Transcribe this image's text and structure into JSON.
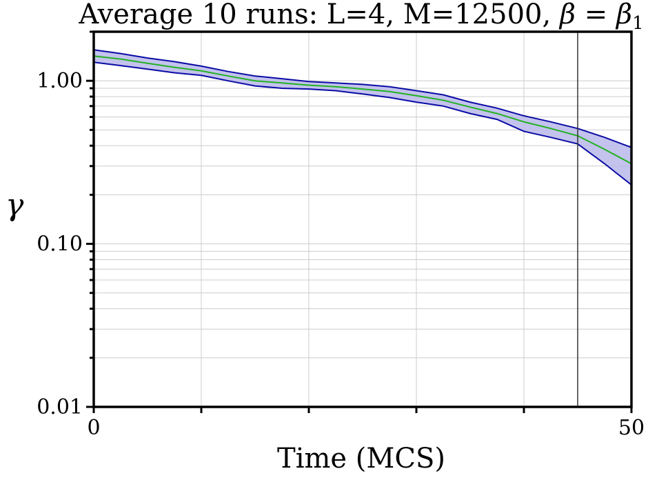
{
  "chart_data": {
    "type": "line",
    "title_text": "Average 10 runs: L=4, M=12500, ",
    "title_beta": "β",
    "title_eq": " = ",
    "title_beta2": "β",
    "title_sub": "1",
    "xlabel": "Time (MCS)",
    "ylabel": "γ",
    "x_scale": "linear",
    "y_scale": "log",
    "xlim": [
      0,
      50
    ],
    "ylim": [
      0.01,
      2.0
    ],
    "x_ticks": [
      0,
      10,
      20,
      30,
      40,
      50
    ],
    "x_tick_labels": [
      "0",
      "",
      "",
      "",
      "",
      "50"
    ],
    "y_ticks": [
      0.01,
      0.1,
      1.0
    ],
    "y_tick_labels": [
      "0.01",
      "0.10",
      "1.00"
    ],
    "grid": true,
    "vertical_line_x": 45,
    "x": [
      0,
      2.5,
      5,
      7.5,
      10,
      12.5,
      15,
      17.5,
      20,
      22.5,
      25,
      27.5,
      30,
      32.5,
      35,
      37.5,
      40,
      42.5,
      45,
      47.5,
      50
    ],
    "series": [
      {
        "role": "upper",
        "color": "#0a0aa5",
        "values": [
          1.55,
          1.47,
          1.38,
          1.31,
          1.23,
          1.14,
          1.07,
          1.03,
          0.99,
          0.97,
          0.95,
          0.92,
          0.87,
          0.82,
          0.74,
          0.68,
          0.61,
          0.56,
          0.51,
          0.45,
          0.39
        ]
      },
      {
        "role": "mean",
        "color": "#22b222",
        "values": [
          1.42,
          1.36,
          1.28,
          1.21,
          1.15,
          1.07,
          1.0,
          0.97,
          0.94,
          0.92,
          0.89,
          0.86,
          0.81,
          0.76,
          0.69,
          0.63,
          0.56,
          0.51,
          0.46,
          0.38,
          0.31
        ]
      },
      {
        "role": "lower",
        "color": "#0a0aa5",
        "values": [
          1.3,
          1.24,
          1.18,
          1.12,
          1.08,
          1.0,
          0.93,
          0.9,
          0.89,
          0.87,
          0.83,
          0.79,
          0.74,
          0.7,
          0.63,
          0.58,
          0.49,
          0.45,
          0.41,
          0.31,
          0.23
        ]
      }
    ],
    "band_fill": "#b8b8ea",
    "axis_color": "#000000",
    "grid_color": "#cccccc"
  }
}
